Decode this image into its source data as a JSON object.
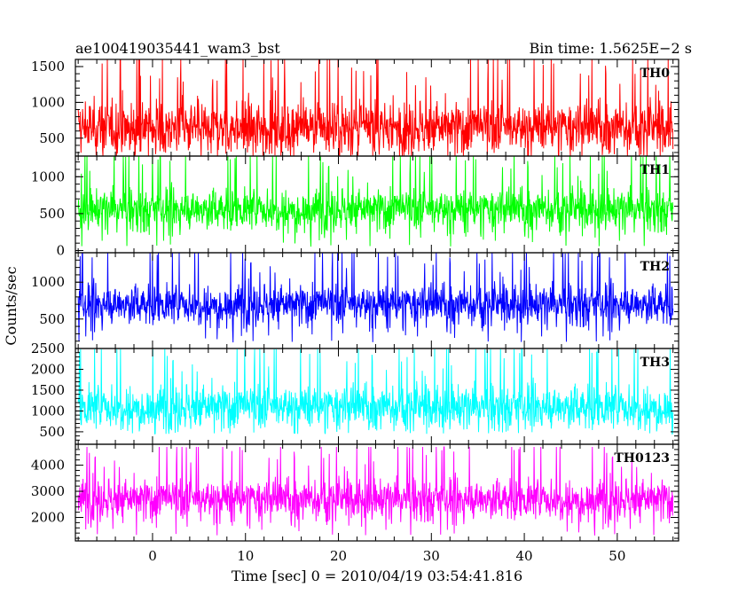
{
  "header": {
    "title": "ae100419035441_wam3_bst",
    "bin_time": "Bin time: 1.5625E−2 s"
  },
  "axes": {
    "ylabel": "Counts/sec",
    "xlabel": "Time [sec] 0 = 2010/04/19 03:54:41.816"
  },
  "chart_data": [
    {
      "type": "line",
      "series_label": "TH0",
      "color": "#ff0000",
      "x_range": [
        -8.3,
        56.0
      ],
      "ylim": [
        250,
        1600
      ],
      "y_ticks": [
        "500",
        "1000",
        "1500"
      ],
      "y_tick_values": [
        500,
        1000,
        1500
      ],
      "approx_mean": 650,
      "approx_min": 250,
      "approx_max": 1600
    },
    {
      "type": "line",
      "series_label": "TH1",
      "color": "#00ff00",
      "x_range": [
        -8.3,
        56.0
      ],
      "ylim": [
        -30,
        1280
      ],
      "y_ticks": [
        "0",
        "500",
        "1000"
      ],
      "y_tick_values": [
        0,
        500,
        1000
      ],
      "approx_mean": 560,
      "approx_min": 50,
      "approx_max": 1280
    },
    {
      "type": "line",
      "series_label": "TH2",
      "color": "#0000ff",
      "x_range": [
        -8.3,
        56.0
      ],
      "ylim": [
        100,
        1400
      ],
      "y_ticks": [
        "500",
        "1000"
      ],
      "y_tick_values": [
        500,
        1000
      ],
      "approx_mean": 700,
      "approx_min": 180,
      "approx_max": 1400
    },
    {
      "type": "line",
      "series_label": "TH3",
      "color": "#00ffff",
      "x_range": [
        -8.3,
        56.0
      ],
      "ylim": [
        200,
        2500
      ],
      "y_ticks": [
        "500",
        "1000",
        "1500",
        "2000",
        "2500"
      ],
      "y_tick_values": [
        500,
        1000,
        1500,
        2000,
        2500
      ],
      "approx_mean": 1100,
      "approx_min": 450,
      "approx_max": 2480
    },
    {
      "type": "line",
      "series_label": "TH0123",
      "color": "#ff00ff",
      "x_range": [
        -8.3,
        56.0
      ],
      "ylim": [
        1100,
        4800
      ],
      "y_ticks": [
        "2000",
        "3000",
        "4000"
      ],
      "y_tick_values": [
        2000,
        3000,
        4000
      ],
      "approx_mean": 2700,
      "approx_min": 1300,
      "approx_max": 4700
    }
  ],
  "x_axis": {
    "xlim": [
      -8.3,
      56.6
    ],
    "data_start": -8.0,
    "data_end": 56.0,
    "major_ticks": [
      "0",
      "10",
      "20",
      "30",
      "40",
      "50"
    ],
    "major_tick_values": [
      0,
      10,
      20,
      30,
      40,
      50
    ]
  }
}
